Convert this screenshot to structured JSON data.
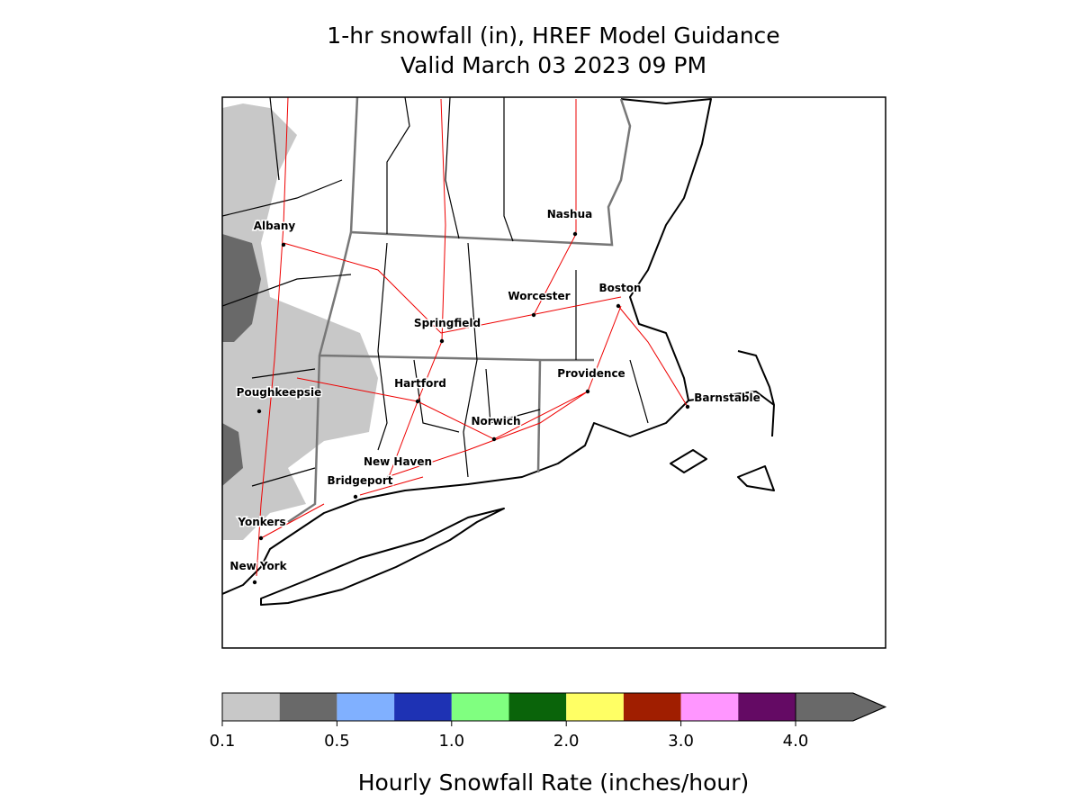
{
  "header": {
    "title": [
      "1-hr snowfall (in), HREF Model Guidance",
      "Valid March 03 2023 09 PM"
    ]
  },
  "map": {
    "cities": [
      {
        "label": "Albany"
      },
      {
        "label": "Nashua"
      },
      {
        "label": "Worcester"
      },
      {
        "label": "Boston"
      },
      {
        "label": "Springfield"
      },
      {
        "label": "Hartford"
      },
      {
        "label": "Providence"
      },
      {
        "label": "Barnstable"
      },
      {
        "label": "Poughkeepsie"
      },
      {
        "label": "Norwich"
      },
      {
        "label": "New Haven"
      },
      {
        "label": "Bridgeport"
      },
      {
        "label": "Yonkers"
      },
      {
        "label": "New York"
      }
    ]
  },
  "colorbar": {
    "label": "Hourly Snowfall Rate (inches/hour)",
    "bounds": [
      0.1,
      0.25,
      0.5,
      0.75,
      1.0,
      1.5,
      2.0,
      2.5,
      3.0,
      3.5,
      4.0
    ],
    "colors": [
      "#c8c8c8",
      "#696969",
      "#80b0ff",
      "#1e32b4",
      "#80ff80",
      "#0a640a",
      "#ffff64",
      "#a01e00",
      "#ff96ff",
      "#640a64"
    ],
    "extend_color": "#696969",
    "ticks": [
      0.1,
      0.5,
      {
        "value": 1.0,
        "label": "1.0"
      },
      {
        "value": 2.0,
        "label": "2.0"
      },
      {
        "value": 3.0,
        "label": "3.0"
      },
      {
        "value": 4.0,
        "label": "4.0"
      }
    ]
  }
}
